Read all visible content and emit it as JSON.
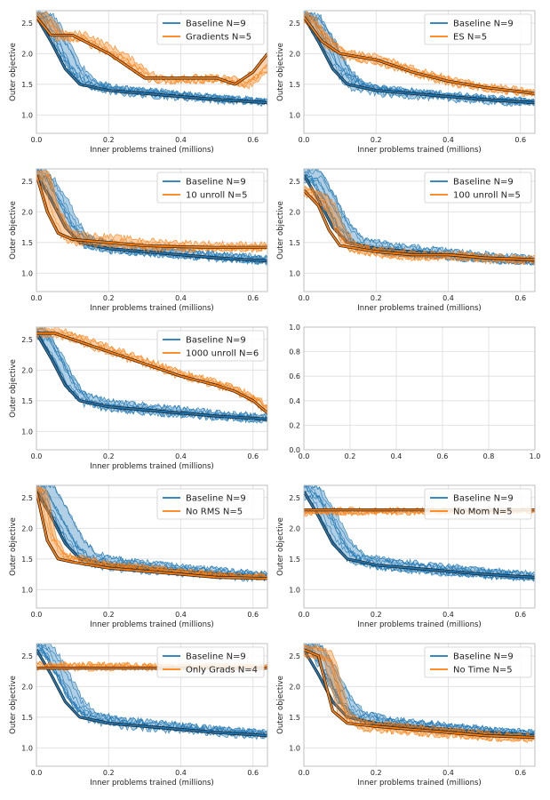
{
  "colors": {
    "baseline": "#1f77b4",
    "variant": "#ff7f0e",
    "grid": "#dddddd",
    "frame": "#bfbfbf"
  },
  "chart_data": [
    {
      "type": "line",
      "xlabel": "Inner problems trained (millions)",
      "ylabel": "Outer objective",
      "xlim": [
        0,
        0.64
      ],
      "ylim": [
        0.7,
        2.7
      ],
      "xticks": [
        "0.0",
        "0.2",
        "0.4",
        "0.6"
      ],
      "yticks": [
        "1.0",
        "1.5",
        "2.0",
        "2.5"
      ],
      "legend_position": "top-right",
      "series": [
        {
          "name": "Baseline N=9",
          "x": [
            0,
            0.04,
            0.08,
            0.12,
            0.2,
            0.3,
            0.4,
            0.5,
            0.64
          ],
          "y": [
            2.6,
            2.2,
            1.75,
            1.5,
            1.4,
            1.35,
            1.3,
            1.25,
            1.2
          ]
        },
        {
          "name": "Gradients N=5",
          "x": [
            0,
            0.04,
            0.1,
            0.2,
            0.3,
            0.4,
            0.5,
            0.55,
            0.6,
            0.64
          ],
          "y": [
            2.6,
            2.3,
            2.3,
            2.0,
            1.6,
            1.6,
            1.6,
            1.5,
            1.7,
            2.0
          ]
        }
      ]
    },
    {
      "type": "line",
      "xlabel": "Inner problems trained (millions)",
      "ylabel": "Outer objective",
      "xlim": [
        0,
        0.64
      ],
      "ylim": [
        0.7,
        2.7
      ],
      "xticks": [
        "0.0",
        "0.2",
        "0.4",
        "0.6"
      ],
      "yticks": [
        "1.0",
        "1.5",
        "2.0",
        "2.5"
      ],
      "legend_position": "top-right",
      "series": [
        {
          "name": "Baseline N=9",
          "x": [
            0,
            0.04,
            0.08,
            0.12,
            0.2,
            0.3,
            0.4,
            0.5,
            0.64
          ],
          "y": [
            2.6,
            2.2,
            1.75,
            1.5,
            1.4,
            1.35,
            1.3,
            1.25,
            1.2
          ]
        },
        {
          "name": "ES N=5",
          "x": [
            0,
            0.05,
            0.1,
            0.15,
            0.2,
            0.3,
            0.4,
            0.5,
            0.64
          ],
          "y": [
            2.6,
            2.2,
            2.0,
            1.95,
            1.9,
            1.7,
            1.55,
            1.45,
            1.35
          ]
        }
      ]
    },
    {
      "type": "line",
      "xlabel": "Inner problems trained (millions)",
      "ylabel": "Outer objective",
      "xlim": [
        0,
        0.64
      ],
      "ylim": [
        0.7,
        2.7
      ],
      "xticks": [
        "0.0",
        "0.2",
        "0.4",
        "0.6"
      ],
      "yticks": [
        "1.0",
        "1.5",
        "2.0",
        "2.5"
      ],
      "legend_position": "top-right",
      "series": [
        {
          "name": "Baseline N=9",
          "x": [
            0,
            0.04,
            0.08,
            0.12,
            0.2,
            0.3,
            0.4,
            0.5,
            0.64
          ],
          "y": [
            2.6,
            2.2,
            1.75,
            1.5,
            1.4,
            1.35,
            1.3,
            1.25,
            1.2
          ]
        },
        {
          "name": "10 unroll N=5",
          "x": [
            0,
            0.03,
            0.06,
            0.1,
            0.2,
            0.3,
            0.4,
            0.5,
            0.64
          ],
          "y": [
            2.6,
            2.0,
            1.65,
            1.55,
            1.5,
            1.45,
            1.43,
            1.42,
            1.42
          ]
        }
      ]
    },
    {
      "type": "line",
      "xlabel": "Inner problems trained (millions)",
      "ylabel": "Outer objective",
      "xlim": [
        0,
        0.64
      ],
      "ylim": [
        0.7,
        2.7
      ],
      "xticks": [
        "0.0",
        "0.2",
        "0.4",
        "0.6"
      ],
      "yticks": [
        "1.0",
        "1.5",
        "2.0",
        "2.5"
      ],
      "legend_position": "top-right",
      "series": [
        {
          "name": "Baseline N=9",
          "x": [
            0,
            0.04,
            0.08,
            0.12,
            0.2,
            0.3,
            0.4,
            0.5,
            0.64
          ],
          "y": [
            2.6,
            2.2,
            1.75,
            1.5,
            1.4,
            1.35,
            1.3,
            1.25,
            1.2
          ]
        },
        {
          "name": "100 unroll N=5",
          "x": [
            0,
            0.04,
            0.07,
            0.1,
            0.2,
            0.3,
            0.4,
            0.5,
            0.64
          ],
          "y": [
            2.35,
            2.1,
            1.7,
            1.45,
            1.35,
            1.3,
            1.3,
            1.25,
            1.22
          ]
        }
      ]
    },
    {
      "type": "line",
      "xlabel": "Inner problems trained (millions)",
      "ylabel": "Outer objective",
      "xlim": [
        0,
        0.64
      ],
      "ylim": [
        0.7,
        2.7
      ],
      "xticks": [
        "0.0",
        "0.2",
        "0.4",
        "0.6"
      ],
      "yticks": [
        "1.0",
        "1.5",
        "2.0",
        "2.5"
      ],
      "legend_position": "top-right",
      "series": [
        {
          "name": "Baseline N=9",
          "x": [
            0,
            0.04,
            0.08,
            0.12,
            0.2,
            0.3,
            0.4,
            0.5,
            0.64
          ],
          "y": [
            2.6,
            2.2,
            1.75,
            1.5,
            1.4,
            1.35,
            1.3,
            1.25,
            1.2
          ]
        },
        {
          "name": "1000 unroll N=6",
          "x": [
            0,
            0.05,
            0.1,
            0.2,
            0.3,
            0.4,
            0.5,
            0.55,
            0.6,
            0.64
          ],
          "y": [
            2.6,
            2.6,
            2.5,
            2.3,
            2.1,
            1.9,
            1.75,
            1.65,
            1.5,
            1.3
          ]
        }
      ]
    },
    {
      "type": "line",
      "xlim": [
        0,
        1
      ],
      "ylim": [
        0,
        1
      ],
      "xticks": [
        "0.0",
        "0.2",
        "0.4",
        "0.6",
        "0.8",
        "1.0"
      ],
      "yticks": [
        "0.0",
        "0.2",
        "0.4",
        "0.6",
        "0.8",
        "1.0"
      ],
      "series": []
    },
    {
      "type": "line",
      "xlabel": "Inner problems trained (millions)",
      "ylabel": "Outer objective",
      "xlim": [
        0,
        0.64
      ],
      "ylim": [
        0.7,
        2.7
      ],
      "xticks": [
        "0.0",
        "0.2",
        "0.4",
        "0.6"
      ],
      "yticks": [
        "1.0",
        "1.5",
        "2.0",
        "2.5"
      ],
      "legend_position": "top-right",
      "series": [
        {
          "name": "Baseline N=9",
          "x": [
            0,
            0.04,
            0.08,
            0.12,
            0.2,
            0.3,
            0.4,
            0.5,
            0.64
          ],
          "y": [
            2.6,
            2.2,
            1.75,
            1.5,
            1.4,
            1.35,
            1.3,
            1.25,
            1.2
          ]
        },
        {
          "name": "No RMS N=5",
          "x": [
            0,
            0.03,
            0.06,
            0.1,
            0.2,
            0.3,
            0.4,
            0.5,
            0.64
          ],
          "y": [
            2.6,
            1.8,
            1.5,
            1.45,
            1.35,
            1.3,
            1.25,
            1.2,
            1.18
          ]
        }
      ]
    },
    {
      "type": "line",
      "xlabel": "Inner problems trained (millions)",
      "ylabel": "Outer objective",
      "xlim": [
        0,
        0.64
      ],
      "ylim": [
        0.7,
        2.7
      ],
      "xticks": [
        "0.0",
        "0.2",
        "0.4",
        "0.6"
      ],
      "yticks": [
        "1.0",
        "1.5",
        "2.0",
        "2.5"
      ],
      "legend_position": "top-right",
      "series": [
        {
          "name": "Baseline N=9",
          "x": [
            0,
            0.04,
            0.08,
            0.12,
            0.2,
            0.3,
            0.4,
            0.5,
            0.64
          ],
          "y": [
            2.6,
            2.2,
            1.75,
            1.5,
            1.4,
            1.35,
            1.3,
            1.25,
            1.2
          ]
        },
        {
          "name": "No Mom N=5",
          "x": [
            0,
            0.1,
            0.2,
            0.3,
            0.4,
            0.5,
            0.64
          ],
          "y": [
            2.3,
            2.3,
            2.3,
            2.3,
            2.3,
            2.3,
            2.3
          ]
        }
      ]
    },
    {
      "type": "line",
      "xlabel": "Inner problems trained (millions)",
      "ylabel": "Outer objective",
      "xlim": [
        0,
        0.64
      ],
      "ylim": [
        0.7,
        2.7
      ],
      "xticks": [
        "0.0",
        "0.2",
        "0.4",
        "0.6"
      ],
      "yticks": [
        "1.0",
        "1.5",
        "2.0",
        "2.5"
      ],
      "legend_position": "top-right",
      "series": [
        {
          "name": "Baseline N=9",
          "x": [
            0,
            0.04,
            0.08,
            0.12,
            0.2,
            0.3,
            0.4,
            0.5,
            0.64
          ],
          "y": [
            2.6,
            2.2,
            1.75,
            1.5,
            1.4,
            1.35,
            1.3,
            1.25,
            1.2
          ]
        },
        {
          "name": "Only Grads N=4",
          "x": [
            0,
            0.1,
            0.2,
            0.3,
            0.4,
            0.5,
            0.64
          ],
          "y": [
            2.3,
            2.3,
            2.3,
            2.3,
            2.3,
            2.3,
            2.3
          ]
        }
      ]
    },
    {
      "type": "line",
      "xlabel": "Inner problems trained (millions)",
      "ylabel": "Outer objective",
      "xlim": [
        0,
        0.64
      ],
      "ylim": [
        0.7,
        2.7
      ],
      "xticks": [
        "0.0",
        "0.2",
        "0.4",
        "0.6"
      ],
      "yticks": [
        "1.0",
        "1.5",
        "2.0",
        "2.5"
      ],
      "legend_position": "top-right",
      "series": [
        {
          "name": "Baseline N=9",
          "x": [
            0,
            0.04,
            0.08,
            0.12,
            0.2,
            0.3,
            0.4,
            0.5,
            0.64
          ],
          "y": [
            2.6,
            2.2,
            1.75,
            1.5,
            1.4,
            1.35,
            1.3,
            1.25,
            1.2
          ]
        },
        {
          "name": "No Time N=5",
          "x": [
            0,
            0.04,
            0.08,
            0.12,
            0.2,
            0.3,
            0.4,
            0.5,
            0.64
          ],
          "y": [
            2.6,
            2.5,
            1.6,
            1.4,
            1.35,
            1.3,
            1.25,
            1.2,
            1.17
          ]
        }
      ]
    }
  ]
}
